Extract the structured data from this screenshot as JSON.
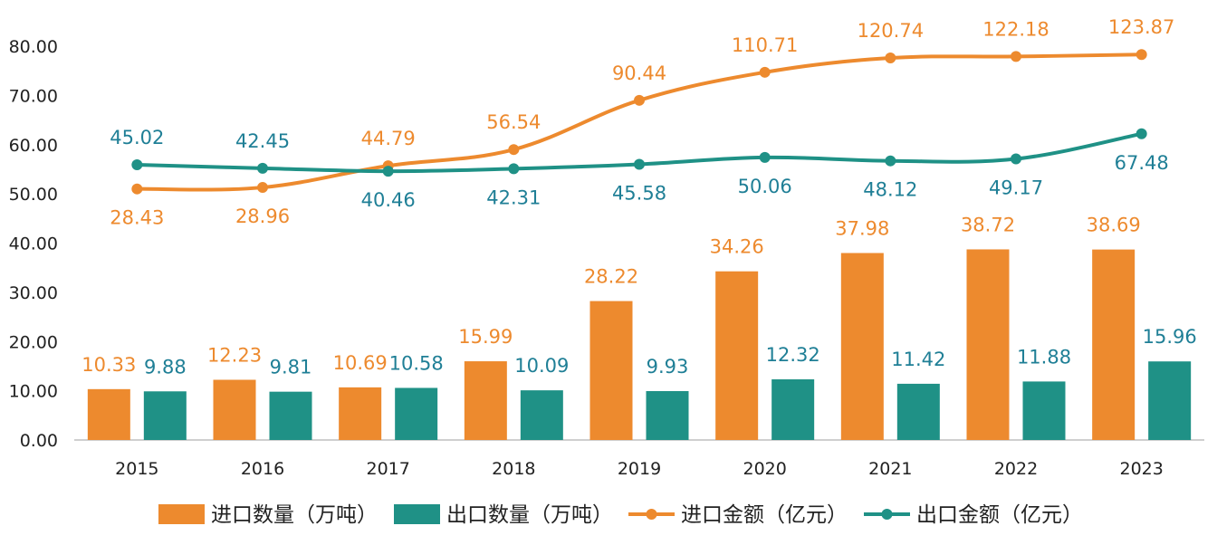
{
  "chart_data": {
    "type": "bar+line",
    "categories": [
      "2015",
      "2016",
      "2017",
      "2018",
      "2019",
      "2020",
      "2021",
      "2022",
      "2023"
    ],
    "y_ticks": [
      "0.00",
      "10.00",
      "20.00",
      "30.00",
      "40.00",
      "50.00",
      "60.00",
      "70.00",
      "80.00"
    ],
    "ylim": [
      0,
      80
    ],
    "grid": false,
    "legend_position": "bottom",
    "colors": {
      "orange": "#ED8A2E",
      "teal": "#1F9186",
      "import_value_label": "#ED8A2E",
      "export_value_label": "#1F7F96"
    },
    "bar_series": [
      {
        "name": "进口数量（万吨）",
        "values": [
          10.33,
          12.23,
          10.69,
          15.99,
          28.22,
          34.26,
          37.98,
          38.72,
          38.69
        ],
        "labels": [
          "10.33",
          "12.23",
          "10.69",
          "15.99",
          "28.22",
          "34.26",
          "37.98",
          "38.72",
          "38.69"
        ]
      },
      {
        "name": "出口数量（万吨）",
        "values": [
          9.88,
          9.81,
          10.58,
          10.09,
          9.93,
          12.32,
          11.42,
          11.88,
          15.96
        ],
        "labels": [
          "9.88",
          "9.81",
          "10.58",
          "10.09",
          "9.93",
          "12.32",
          "11.42",
          "11.88",
          "15.96"
        ]
      }
    ],
    "line_series": [
      {
        "name": "进口金额（亿元）",
        "values": [
          28.43,
          28.96,
          44.79,
          56.54,
          90.44,
          110.71,
          120.74,
          122.18,
          123.87
        ],
        "labels": [
          "28.43",
          "28.96",
          "44.79",
          "56.54",
          "90.44",
          "110.71",
          "120.74",
          "122.18",
          "123.87"
        ],
        "plotted_y": [
          51,
          51.3,
          55.7,
          59,
          69,
          74.7,
          77.6,
          77.9,
          78.3
        ]
      },
      {
        "name": "出口金额（亿元）",
        "values": [
          45.02,
          42.45,
          40.46,
          42.31,
          45.58,
          50.06,
          48.12,
          49.17,
          67.48
        ],
        "labels": [
          "45.02",
          "42.45",
          "40.46",
          "42.31",
          "45.58",
          "50.06",
          "48.12",
          "49.17",
          "67.48"
        ],
        "plotted_y": [
          55.9,
          55.2,
          54.6,
          55.1,
          56,
          57.4,
          56.7,
          57.1,
          62.2
        ]
      }
    ]
  }
}
